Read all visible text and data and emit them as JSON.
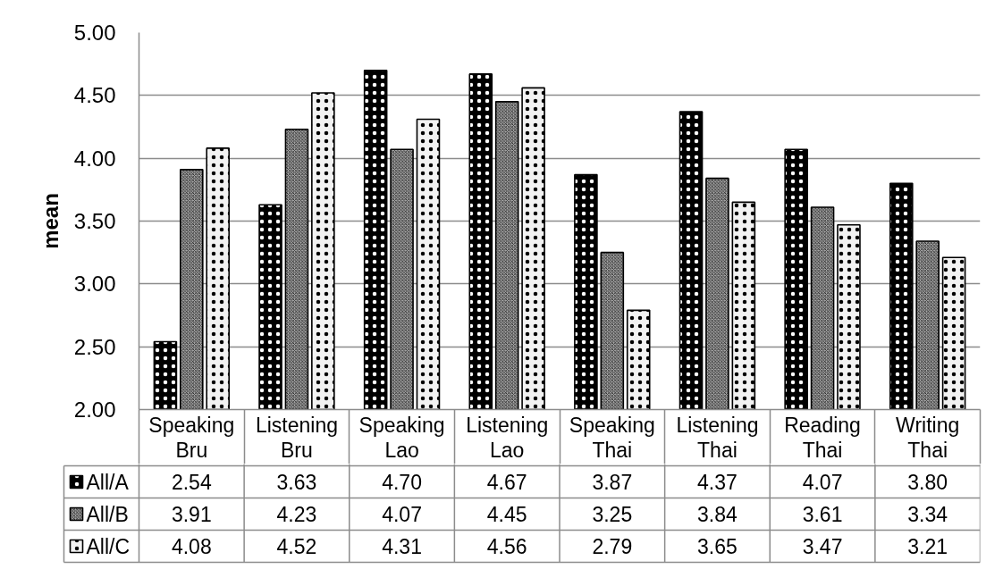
{
  "chart_data": {
    "type": "bar",
    "ylabel": "mean",
    "categories": [
      "Speaking Bru",
      "Listening Bru",
      "Speaking Lao",
      "Listening Lao",
      "Speaking Thai",
      "Listening Thai",
      "Reading Thai",
      "Writing Thai"
    ],
    "series": [
      {
        "name": "All/A",
        "color": "#000000",
        "values": [
          2.54,
          3.63,
          4.7,
          4.67,
          3.87,
          4.37,
          4.07,
          3.8
        ],
        "value_labels": [
          "2.54",
          "3.63",
          "4.70",
          "4.67",
          "3.87",
          "4.37",
          "4.07",
          "3.80"
        ]
      },
      {
        "name": "All/B",
        "color": "#a6a6a6",
        "values": [
          3.91,
          4.23,
          4.07,
          4.45,
          3.25,
          3.84,
          3.61,
          3.34
        ],
        "value_labels": [
          "3.91",
          "4.23",
          "4.07",
          "4.45",
          "3.25",
          "3.84",
          "3.61",
          "3.34"
        ]
      },
      {
        "name": "All/C",
        "color": "#f2f2f2",
        "values": [
          4.08,
          4.52,
          4.31,
          4.56,
          2.79,
          3.65,
          3.47,
          3.21
        ],
        "value_labels": [
          "4.08",
          "4.52",
          "4.31",
          "4.56",
          "2.79",
          "3.65",
          "3.47",
          "3.21"
        ]
      }
    ],
    "ylim": [
      2,
      5
    ],
    "yticks": [
      {
        "value": 2,
        "label": "2.00"
      },
      {
        "value": 2.5,
        "label": "2.50"
      },
      {
        "value": 3,
        "label": "3.00"
      },
      {
        "value": 3.5,
        "label": "3.50"
      },
      {
        "value": 4,
        "label": "4.00"
      },
      {
        "value": 4.5,
        "label": "4.50"
      },
      {
        "value": 5,
        "label": "5.00"
      }
    ],
    "grid": "y",
    "legend": "bottom left"
  }
}
